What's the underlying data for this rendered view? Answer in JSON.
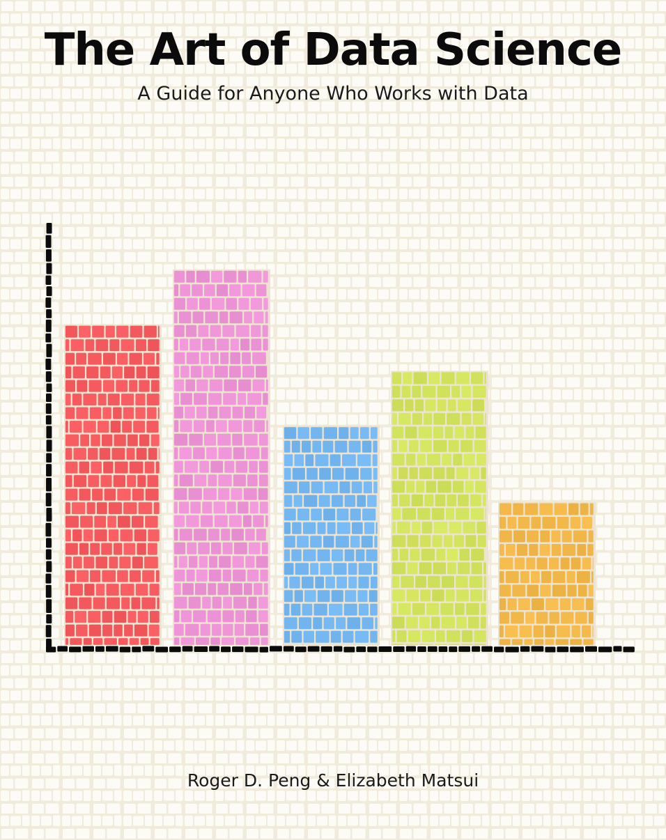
{
  "cover": {
    "title": "The Art of Data Science",
    "subtitle": "A Guide for Anyone Who Works with Data",
    "authors": "Roger D. Peng & Elizabeth Matsui"
  },
  "colors": {
    "background": "#f4f0e4",
    "grout": "#ece4d0",
    "axis": "#0b0b0b",
    "text": "#111111"
  },
  "chart_data": {
    "type": "bar",
    "title": "",
    "xlabel": "",
    "ylabel": "",
    "categories": [
      "",
      "",
      "",
      "",
      ""
    ],
    "values": [
      7.6,
      8.9,
      5.2,
      6.5,
      3.4
    ],
    "colors": [
      "#f45a5e",
      "#ec94d6",
      "#74b6f0",
      "#d2e35e",
      "#f2b84a"
    ],
    "ylim": [
      0,
      10
    ],
    "grid": false,
    "legend": "none"
  }
}
